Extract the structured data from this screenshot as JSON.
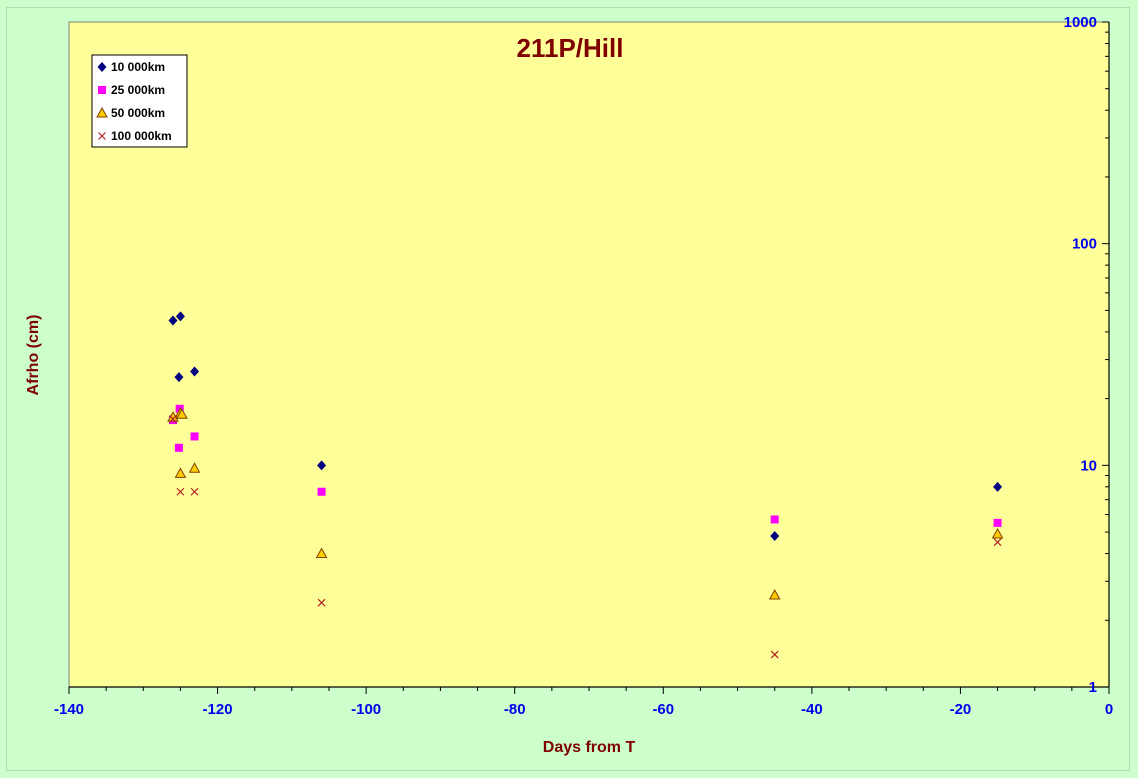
{
  "colors": {
    "background": "#ccffcc",
    "plot_area": "#ffff99",
    "title": "#800000",
    "tick_labels": "#0000ee",
    "axis_labels": "#800000"
  },
  "chart_data": {
    "type": "scatter",
    "title": "211P/Hill",
    "xlabel": "Days from T",
    "ylabel": "Afrho (cm)",
    "xlim": [
      -140,
      0
    ],
    "ylim": [
      1,
      1000
    ],
    "y_scale": "log",
    "y_axis_side": "right",
    "x_ticks": [
      "-140",
      "-120",
      "-100",
      "-80",
      "-60",
      "-40",
      "-20",
      "0"
    ],
    "y_ticks": [
      "1",
      "10",
      "100",
      "1000"
    ],
    "grid": false,
    "legend_position": "top-left",
    "series": [
      {
        "name": "10 000km",
        "marker": "diamond",
        "color": "#000080",
        "points": [
          [
            -126,
            45
          ],
          [
            -125,
            47
          ],
          [
            -125.2,
            25
          ],
          [
            -123.1,
            26.5
          ],
          [
            -106,
            10
          ],
          [
            -45,
            4.8
          ],
          [
            -15,
            8
          ]
        ]
      },
      {
        "name": "25 000km",
        "marker": "square",
        "color": "#ff00ff",
        "points": [
          [
            -126,
            16
          ],
          [
            -125.1,
            18
          ],
          [
            -125.2,
            12
          ],
          [
            -123.1,
            13.5
          ],
          [
            -106,
            7.6
          ],
          [
            -45,
            5.7
          ],
          [
            -15,
            5.5
          ]
        ]
      },
      {
        "name": "50 000km",
        "marker": "triangle",
        "color": "#ffcc00",
        "points": [
          [
            -126,
            16.5
          ],
          [
            -125,
            17.2
          ],
          [
            -124.8,
            17
          ],
          [
            -125,
            9.2
          ],
          [
            -123.1,
            9.7
          ],
          [
            -106,
            4
          ],
          [
            -45,
            2.6
          ],
          [
            -15,
            4.9
          ]
        ]
      },
      {
        "name": "100 000km",
        "marker": "x",
        "color": "#b22222",
        "points": [
          [
            -126,
            16.2
          ],
          [
            -125,
            7.6
          ],
          [
            -123.1,
            7.6
          ],
          [
            -106,
            2.4
          ],
          [
            -45,
            1.4
          ],
          [
            -15,
            4.5
          ]
        ]
      }
    ]
  }
}
